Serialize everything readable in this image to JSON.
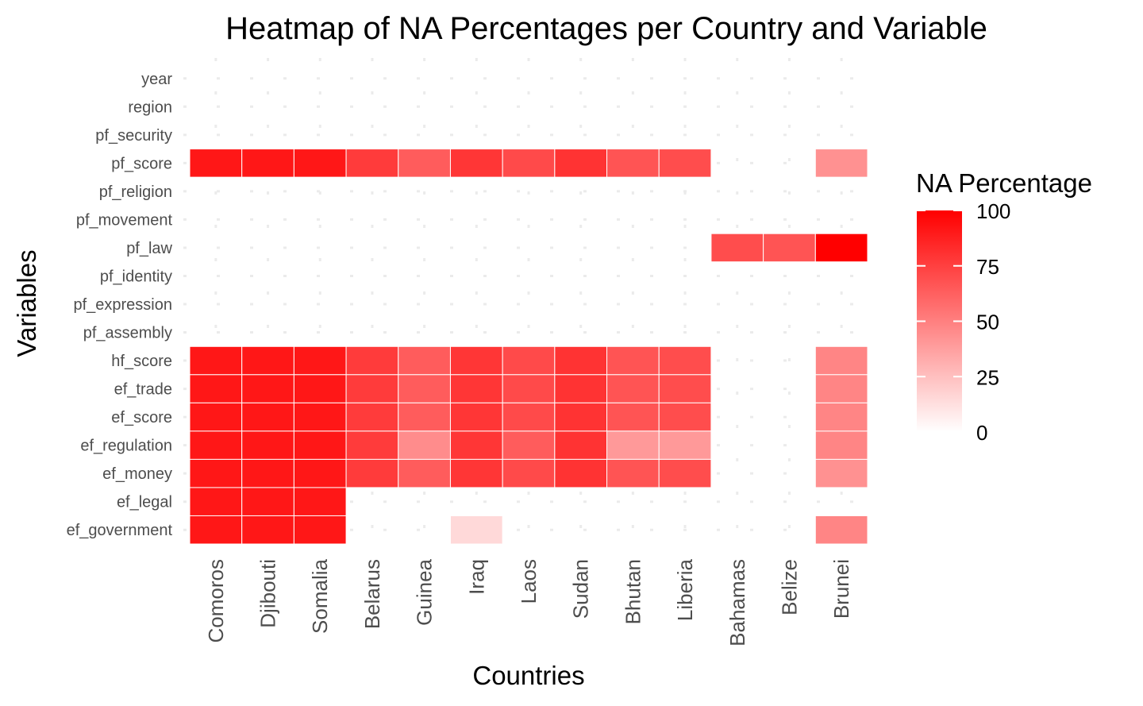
{
  "chart_data": {
    "type": "heatmap",
    "title": "Heatmap of NA Percentages per Country and Variable",
    "xlabel": "Countries",
    "ylabel": "Variables",
    "x_categories": [
      "Comoros",
      "Djibouti",
      "Somalia",
      "Belarus",
      "Guinea",
      "Iraq",
      "Laos",
      "Sudan",
      "Bhutan",
      "Liberia",
      "Bahamas",
      "Belize",
      "Brunei"
    ],
    "y_categories": [
      "year",
      "region",
      "pf_security",
      "pf_score",
      "pf_religion",
      "pf_movement",
      "pf_law",
      "pf_identity",
      "pf_expression",
      "pf_assembly",
      "hf_score",
      "ef_trade",
      "ef_score",
      "ef_regulation",
      "ef_money",
      "ef_legal",
      "ef_government"
    ],
    "values": [
      [
        null,
        null,
        null,
        null,
        null,
        null,
        null,
        null,
        null,
        null,
        null,
        null,
        null
      ],
      [
        null,
        null,
        null,
        null,
        null,
        null,
        null,
        null,
        null,
        null,
        null,
        null,
        null
      ],
      [
        null,
        null,
        null,
        null,
        null,
        null,
        null,
        null,
        null,
        null,
        null,
        null,
        null
      ],
      [
        91,
        91,
        91,
        77,
        64,
        79,
        71,
        80,
        67,
        70,
        null,
        null,
        43
      ],
      [
        null,
        null,
        null,
        null,
        null,
        null,
        null,
        null,
        null,
        null,
        null,
        null,
        null
      ],
      [
        null,
        null,
        null,
        null,
        null,
        null,
        null,
        null,
        null,
        null,
        null,
        null,
        null
      ],
      [
        null,
        null,
        null,
        null,
        null,
        null,
        null,
        null,
        null,
        null,
        70,
        67,
        100
      ],
      [
        null,
        null,
        null,
        null,
        null,
        null,
        null,
        null,
        null,
        null,
        null,
        null,
        null
      ],
      [
        null,
        null,
        null,
        null,
        null,
        null,
        null,
        null,
        null,
        null,
        null,
        null,
        null
      ],
      [
        null,
        null,
        null,
        null,
        null,
        null,
        null,
        null,
        null,
        null,
        null,
        null,
        null
      ],
      [
        91,
        91,
        91,
        77,
        64,
        79,
        71,
        80,
        67,
        70,
        null,
        null,
        48
      ],
      [
        91,
        91,
        91,
        77,
        64,
        79,
        71,
        80,
        67,
        70,
        null,
        null,
        48
      ],
      [
        91,
        91,
        91,
        77,
        64,
        79,
        71,
        80,
        67,
        70,
        null,
        null,
        48
      ],
      [
        91,
        91,
        91,
        77,
        45,
        79,
        64,
        80,
        40,
        40,
        null,
        null,
        48
      ],
      [
        91,
        91,
        91,
        77,
        64,
        79,
        71,
        80,
        67,
        70,
        null,
        null,
        43
      ],
      [
        91,
        91,
        91,
        null,
        null,
        null,
        null,
        null,
        null,
        null,
        null,
        null,
        null
      ],
      [
        91,
        91,
        91,
        null,
        null,
        15,
        null,
        null,
        null,
        null,
        null,
        null,
        48
      ]
    ],
    "color_low": "#ffffff",
    "color_high": "#ff0000",
    "legend": {
      "title": "NA Percentage",
      "ticks": [
        0,
        25,
        50,
        75,
        100
      ],
      "range": [
        0,
        100
      ],
      "placement": "right"
    },
    "grid": true
  }
}
